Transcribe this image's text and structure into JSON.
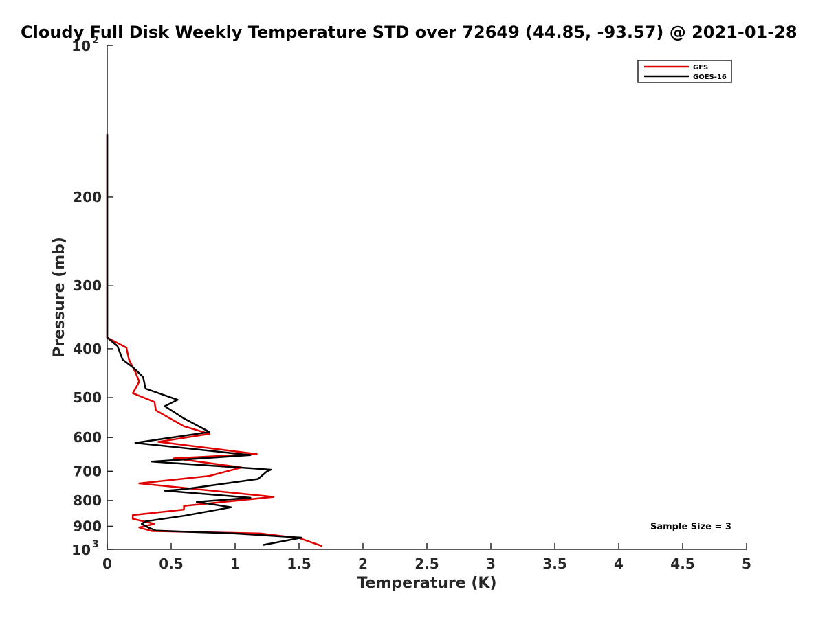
{
  "chart_data": {
    "type": "line",
    "title": "Cloudy Full Disk Weekly Temperature STD over 72649 (44.85, -93.57) @ 2021-01-28",
    "xlabel": "Temperature (K)",
    "ylabel": "Pressure (mb)",
    "xlim": [
      0,
      5
    ],
    "ylim": [
      100,
      1000
    ],
    "y_scale": "log",
    "y_reversed": true,
    "x_ticks": [
      "0",
      "0.5",
      "1",
      "1.5",
      "2",
      "2.5",
      "3",
      "3.5",
      "4",
      "4.5",
      "5"
    ],
    "y_ticks": [
      {
        "value": 100,
        "base": "10",
        "exp": "2"
      },
      {
        "value": 200,
        "label": "200"
      },
      {
        "value": 300,
        "label": "300"
      },
      {
        "value": 400,
        "label": "400"
      },
      {
        "value": 500,
        "label": "500"
      },
      {
        "value": 600,
        "label": "600"
      },
      {
        "value": 700,
        "label": "700"
      },
      {
        "value": 800,
        "label": "800"
      },
      {
        "value": 900,
        "label": "900"
      },
      {
        "value": 1000,
        "base": "10",
        "exp": "3"
      }
    ],
    "legend_position": "top-right",
    "annotation": "Sample Size = 3",
    "series": [
      {
        "name": "GFS",
        "color": "#e00000",
        "points": [
          [
            0,
            150
          ],
          [
            0,
            380
          ],
          [
            0.15,
            398
          ],
          [
            0.17,
            420
          ],
          [
            0.22,
            445
          ],
          [
            0.25,
            465
          ],
          [
            0.2,
            490
          ],
          [
            0.37,
            510
          ],
          [
            0.38,
            530
          ],
          [
            0.6,
            570
          ],
          [
            0.8,
            590
          ],
          [
            0.4,
            612
          ],
          [
            1.17,
            647
          ],
          [
            0.52,
            660
          ],
          [
            1.05,
            688
          ],
          [
            0.8,
            715
          ],
          [
            0.25,
            740
          ],
          [
            1.3,
            787
          ],
          [
            0.6,
            820
          ],
          [
            0.6,
            834
          ],
          [
            0.2,
            855
          ],
          [
            0.2,
            870
          ],
          [
            0.37,
            890
          ],
          [
            0.25,
            905
          ],
          [
            0.35,
            920
          ],
          [
            1.2,
            930
          ],
          [
            1.5,
            950
          ],
          [
            1.68,
            985
          ]
        ]
      },
      {
        "name": "GOES-16",
        "color": "#000000",
        "points": [
          [
            0,
            150
          ],
          [
            0,
            380
          ],
          [
            0.08,
            395
          ],
          [
            0.12,
            420
          ],
          [
            0.2,
            435
          ],
          [
            0.28,
            455
          ],
          [
            0.3,
            480
          ],
          [
            0.55,
            505
          ],
          [
            0.45,
            520
          ],
          [
            0.6,
            550
          ],
          [
            0.8,
            585
          ],
          [
            0.22,
            615
          ],
          [
            1.12,
            650
          ],
          [
            0.35,
            670
          ],
          [
            1.28,
            695
          ],
          [
            1.25,
            700
          ],
          [
            1.18,
            725
          ],
          [
            0.6,
            760
          ],
          [
            0.45,
            765
          ],
          [
            1.12,
            790
          ],
          [
            0.7,
            805
          ],
          [
            0.97,
            825
          ],
          [
            0.6,
            858
          ],
          [
            0.3,
            880
          ],
          [
            0.27,
            890
          ],
          [
            0.32,
            905
          ],
          [
            0.38,
            918
          ],
          [
            1.0,
            930
          ],
          [
            1.52,
            948
          ],
          [
            1.22,
            980
          ]
        ]
      }
    ]
  }
}
